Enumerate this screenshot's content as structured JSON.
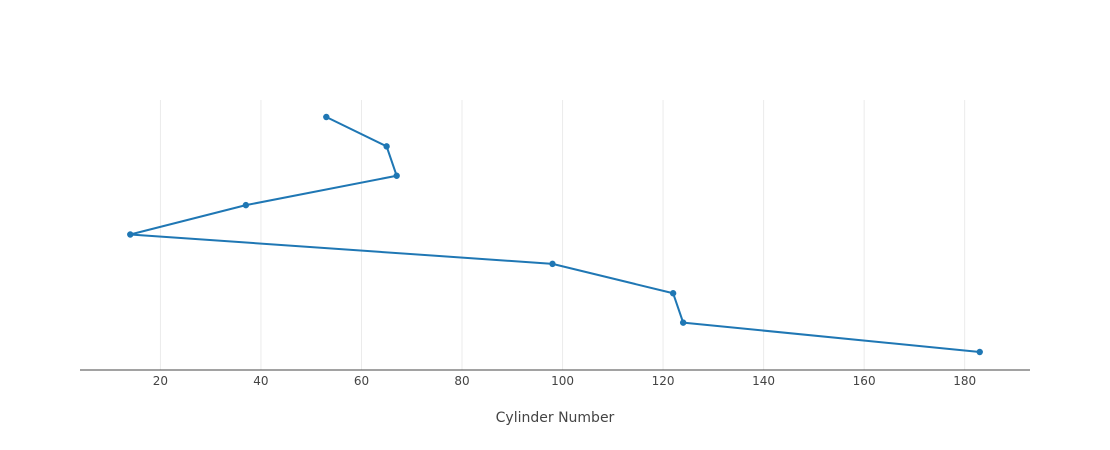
{
  "chart_data": {
    "type": "line",
    "title": "",
    "xlabel": "Cylinder Number",
    "ylabel": "",
    "xlim": [
      4,
      193
    ],
    "x_ticks": [
      20,
      40,
      60,
      80,
      100,
      120,
      140,
      160,
      180
    ],
    "grid": "vertical",
    "legend": "none",
    "y_axis_visible": false,
    "y_order": "top-to-bottom",
    "series": [
      {
        "color": "#1f77b4",
        "x": [
          53,
          65,
          67,
          37,
          14,
          98,
          122,
          124,
          183
        ],
        "y": [
          0,
          1,
          2,
          3,
          4,
          5,
          6,
          7,
          8
        ]
      }
    ]
  }
}
